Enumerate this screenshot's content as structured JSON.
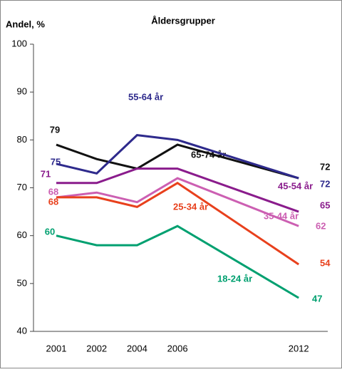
{
  "chart_data": {
    "type": "line",
    "title": "Åldersgrupper",
    "y_label": "Andel, %",
    "categories": [
      "2001",
      "2002",
      "2004",
      "2006",
      "2012"
    ],
    "ylim": [
      40,
      100
    ],
    "yticks": [
      40,
      50,
      60,
      70,
      80,
      90,
      100
    ],
    "grid": false,
    "series": [
      {
        "name": "65-74 år",
        "color": "#111111",
        "values": [
          79,
          76,
          74,
          79,
          72
        ]
      },
      {
        "name": "55-64 år",
        "color": "#2e2a8c",
        "values": [
          75,
          73,
          81,
          80,
          72
        ]
      },
      {
        "name": "45-54 år",
        "color": "#8a1c8c",
        "values": [
          71,
          71,
          74,
          74,
          65
        ]
      },
      {
        "name": "35-44 år",
        "color": "#cc5fb2",
        "values": [
          68,
          69,
          67,
          72,
          62
        ]
      },
      {
        "name": "25-34 år",
        "color": "#e8401c",
        "values": [
          68,
          68,
          66,
          71,
          54
        ]
      },
      {
        "name": "18-24 år",
        "color": "#00a070",
        "values": [
          60,
          58,
          58,
          62,
          47
        ]
      }
    ]
  }
}
